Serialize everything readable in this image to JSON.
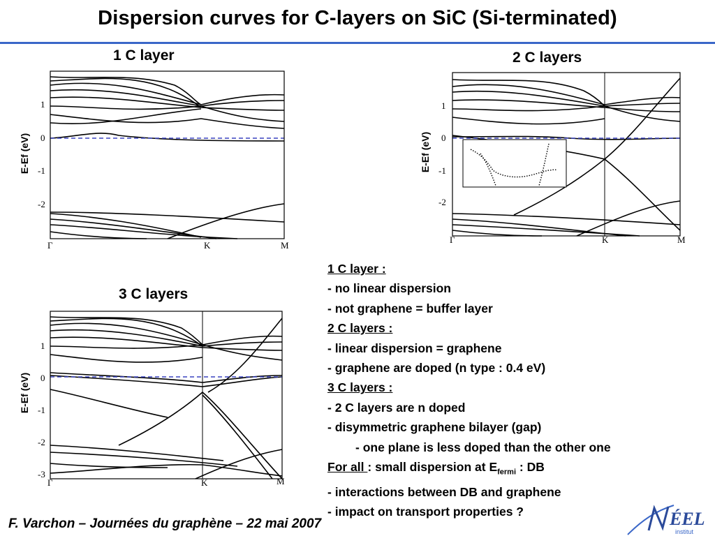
{
  "slide": {
    "title": "Dispersion curves for C-layers on SiC (Si-terminated)",
    "footer": "F. Varchon – Journées du graphène – 22 mai 2007",
    "accent_color": "#3a67c8",
    "fermi_line_color": "#3a44c0"
  },
  "panels": [
    {
      "title": "1 C layer",
      "ylabel": "E-Ef (eV)",
      "yticks": [
        "1",
        "0",
        "-1",
        "-2"
      ],
      "xticks": [
        "Γ",
        "K",
        "M"
      ]
    },
    {
      "title": "2 C layers",
      "ylabel": "E-Ef (eV)",
      "yticks": [
        "1",
        "0",
        "-1",
        "-2"
      ],
      "xticks": [
        "Γ",
        "K",
        "M"
      ]
    },
    {
      "title": "3 C layers",
      "ylabel": "E-Ef (eV)",
      "yticks": [
        "1",
        "0",
        "-1",
        "-2",
        "-3"
      ],
      "xticks": [
        "Γ",
        "K",
        "M"
      ]
    }
  ],
  "notes": {
    "l1": "1 C layer :",
    "l2": "- no linear dispersion",
    "l3": "- not graphene = buffer layer",
    "l4": "2 C layers :",
    "l5": "- linear dispersion = graphene",
    "l6": "- graphene are doped (n type : 0.4 eV)",
    "l7": "3 C layers :",
    "l8": "- 2 C layers are n doped",
    "l9": "- disymmetric graphene bilayer (gap)",
    "l10": "- one plane is less doped than the other one",
    "l11a": "For all ",
    "l11b": ": small dispersion at E",
    "l11c": "fermi",
    "l11d": " : DB",
    "l12": "- interactions between DB and graphene",
    "l13": "- impact on transport properties ?"
  },
  "logo": {
    "text": "NÉEL",
    "subtext": "institut"
  }
}
